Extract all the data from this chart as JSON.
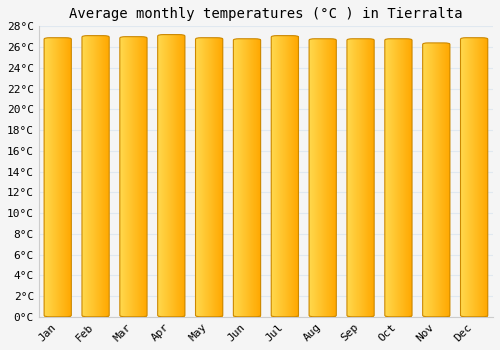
{
  "title": "Average monthly temperatures (°C ) in Tierralta",
  "months": [
    "Jan",
    "Feb",
    "Mar",
    "Apr",
    "May",
    "Jun",
    "Jul",
    "Aug",
    "Sep",
    "Oct",
    "Nov",
    "Dec"
  ],
  "values": [
    26.9,
    27.1,
    27.0,
    27.2,
    26.9,
    26.8,
    27.1,
    26.8,
    26.8,
    26.8,
    26.4,
    26.9
  ],
  "ylim": [
    0,
    28
  ],
  "yticks": [
    0,
    2,
    4,
    6,
    8,
    10,
    12,
    14,
    16,
    18,
    20,
    22,
    24,
    26,
    28
  ],
  "ytick_labels": [
    "0°C",
    "2°C",
    "4°C",
    "6°C",
    "8°C",
    "10°C",
    "12°C",
    "14°C",
    "16°C",
    "18°C",
    "20°C",
    "22°C",
    "24°C",
    "26°C",
    "28°C"
  ],
  "background_color": "#f5f5f5",
  "grid_color": "#e0e8f0",
  "title_fontsize": 10,
  "tick_fontsize": 8,
  "bar_color_left": "#FFD84D",
  "bar_color_center": "#FFBB33",
  "bar_color_right": "#F5A800",
  "bar_edge_color": "#CC8800",
  "bar_width": 0.72
}
